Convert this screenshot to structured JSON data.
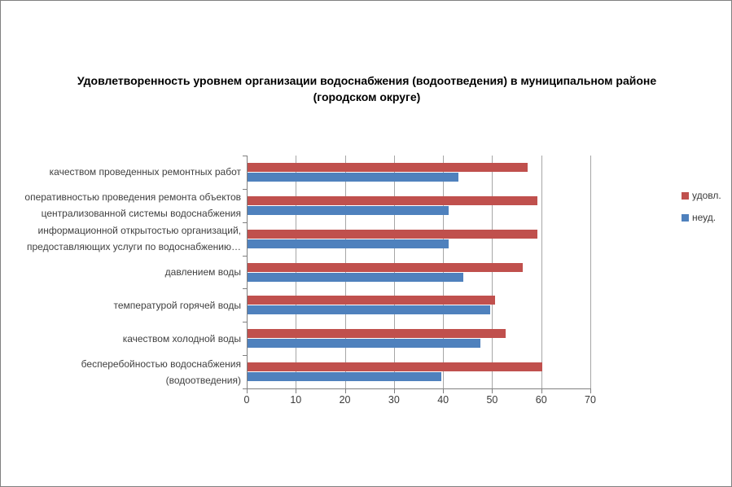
{
  "window": {
    "background_color": "#ffffff",
    "border_color": "#808080"
  },
  "chart_data": {
    "type": "bar",
    "orientation": "horizontal",
    "title": "Удовлетворенность уровнем организации водоснабжения (водоотведения) в муниципальном районе (городском округе)",
    "title_lines": [
      "Удовлетворенность уровнем организации водоснабжения (водоотведения) в муниципальном районе",
      "(городском округе)"
    ],
    "categories": [
      "качеством проведенных  ремонтных работ",
      "оперативностью проведения ремонта объектов централизованной системы водоснабжения",
      "информационной открытостью организаций, предоставляющих услуги по водоснабжению…",
      "давлением  воды",
      "температурой горячей воды",
      "качеством холодной воды",
      "бесперебойностью  водоснабжения (водоотведения)"
    ],
    "series": [
      {
        "name": "удовл.",
        "color": "#C0504D",
        "values": [
          57,
          59,
          59,
          56,
          50.5,
          52.5,
          60
        ]
      },
      {
        "name": "неуд.",
        "color": "#4F81BD",
        "values": [
          43,
          41,
          41,
          44,
          49.5,
          47.5,
          39.5
        ]
      }
    ],
    "xlim": [
      0,
      70
    ],
    "x_ticks": [
      0,
      10,
      20,
      30,
      40,
      50,
      60,
      70
    ],
    "grid": "vertical-only",
    "legend_position": "right",
    "gridline_color": "#a6a6a6",
    "axis_color": "#808080",
    "label_color": "#404040"
  }
}
